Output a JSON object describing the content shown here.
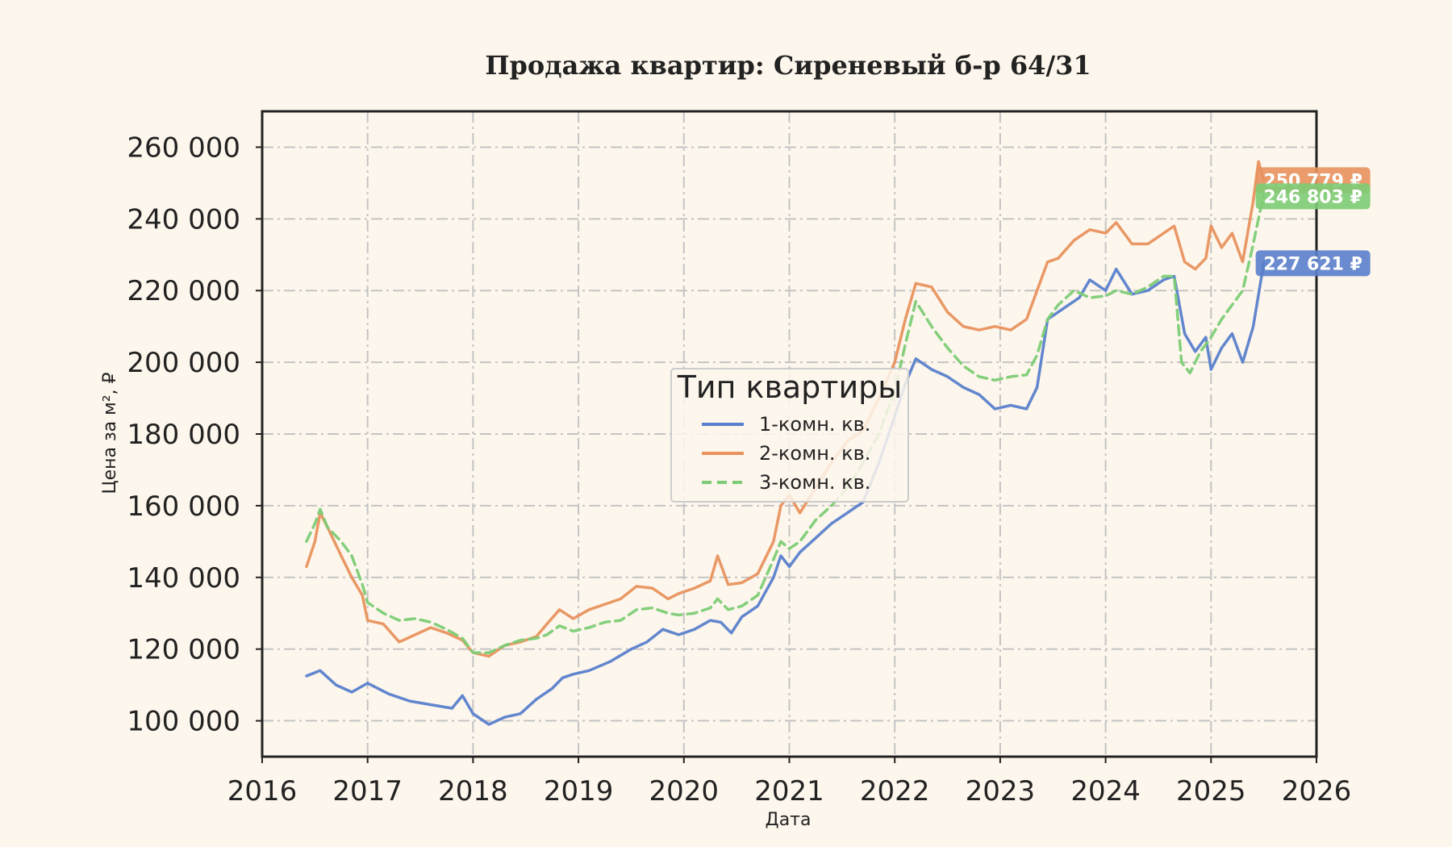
{
  "chart_data": {
    "type": "line",
    "title": "Продажа квартир: Сиреневый б-р 64/31",
    "xlabel": "Дата",
    "ylabel": "Цена за м², ₽",
    "xlim": [
      2016,
      2026
    ],
    "ylim": [
      90000,
      270000
    ],
    "x_ticks": [
      2016,
      2017,
      2018,
      2019,
      2020,
      2021,
      2022,
      2023,
      2024,
      2025,
      2026
    ],
    "x_tick_labels": [
      "2016",
      "2017",
      "2018",
      "2019",
      "2020",
      "2021",
      "2022",
      "2023",
      "2024",
      "2025",
      "2026"
    ],
    "y_ticks": [
      100000,
      120000,
      140000,
      160000,
      180000,
      200000,
      220000,
      240000,
      260000
    ],
    "y_tick_labels": [
      "100 000",
      "120 000",
      "140 000",
      "160 000",
      "180 000",
      "200 000",
      "220 000",
      "240 000",
      "260 000"
    ],
    "grid": true,
    "legend": {
      "title": "Тип квартиры",
      "placement": "center"
    },
    "series": [
      {
        "name": "1-комн. кв.",
        "color": "#5a7fcc",
        "style": "solid",
        "end_label": "227 621 ₽",
        "end_value": 227621,
        "points": [
          [
            2016.42,
            112500
          ],
          [
            2016.55,
            114000
          ],
          [
            2016.7,
            110000
          ],
          [
            2016.85,
            108000
          ],
          [
            2017.0,
            110500
          ],
          [
            2017.2,
            107500
          ],
          [
            2017.4,
            105500
          ],
          [
            2017.6,
            104500
          ],
          [
            2017.8,
            103500
          ],
          [
            2017.9,
            107000
          ],
          [
            2018.0,
            102000
          ],
          [
            2018.15,
            99000
          ],
          [
            2018.3,
            101000
          ],
          [
            2018.45,
            102000
          ],
          [
            2018.6,
            106000
          ],
          [
            2018.75,
            109000
          ],
          [
            2018.85,
            112000
          ],
          [
            2018.95,
            113000
          ],
          [
            2019.1,
            114000
          ],
          [
            2019.3,
            116500
          ],
          [
            2019.5,
            120000
          ],
          [
            2019.65,
            122000
          ],
          [
            2019.8,
            125500
          ],
          [
            2019.95,
            124000
          ],
          [
            2020.1,
            125500
          ],
          [
            2020.25,
            128000
          ],
          [
            2020.35,
            127500
          ],
          [
            2020.45,
            124500
          ],
          [
            2020.55,
            129000
          ],
          [
            2020.7,
            132000
          ],
          [
            2020.85,
            140000
          ],
          [
            2020.92,
            146000
          ],
          [
            2021.0,
            143000
          ],
          [
            2021.1,
            147000
          ],
          [
            2021.25,
            151000
          ],
          [
            2021.4,
            155000
          ],
          [
            2021.55,
            158000
          ],
          [
            2021.7,
            161000
          ],
          [
            2021.85,
            172000
          ],
          [
            2022.0,
            185000
          ],
          [
            2022.1,
            194000
          ],
          [
            2022.2,
            201000
          ],
          [
            2022.35,
            198000
          ],
          [
            2022.5,
            196000
          ],
          [
            2022.65,
            193000
          ],
          [
            2022.8,
            191000
          ],
          [
            2022.95,
            187000
          ],
          [
            2023.1,
            188000
          ],
          [
            2023.25,
            187000
          ],
          [
            2023.35,
            193000
          ],
          [
            2023.45,
            212000
          ],
          [
            2023.6,
            215000
          ],
          [
            2023.75,
            218000
          ],
          [
            2023.85,
            223000
          ],
          [
            2024.0,
            220000
          ],
          [
            2024.1,
            226000
          ],
          [
            2024.25,
            219000
          ],
          [
            2024.4,
            220000
          ],
          [
            2024.55,
            223000
          ],
          [
            2024.65,
            224000
          ],
          [
            2024.75,
            208000
          ],
          [
            2024.85,
            203000
          ],
          [
            2024.95,
            207000
          ],
          [
            2025.0,
            198000
          ],
          [
            2025.1,
            204000
          ],
          [
            2025.2,
            208000
          ],
          [
            2025.3,
            200000
          ],
          [
            2025.4,
            210000
          ],
          [
            2025.5,
            227621
          ]
        ]
      },
      {
        "name": "2-комн. кв.",
        "color": "#e8925e",
        "style": "solid",
        "end_label": "250 779 ₽",
        "end_value": 250779,
        "points": [
          [
            2016.42,
            143000
          ],
          [
            2016.5,
            150000
          ],
          [
            2016.55,
            158000
          ],
          [
            2016.62,
            154000
          ],
          [
            2016.75,
            146000
          ],
          [
            2016.85,
            140000
          ],
          [
            2016.95,
            135000
          ],
          [
            2017.0,
            128000
          ],
          [
            2017.15,
            127000
          ],
          [
            2017.3,
            122000
          ],
          [
            2017.45,
            124000
          ],
          [
            2017.6,
            126000
          ],
          [
            2017.75,
            124500
          ],
          [
            2017.9,
            122500
          ],
          [
            2018.0,
            119000
          ],
          [
            2018.15,
            118000
          ],
          [
            2018.3,
            121000
          ],
          [
            2018.45,
            122000
          ],
          [
            2018.6,
            123500
          ],
          [
            2018.7,
            127000
          ],
          [
            2018.82,
            131000
          ],
          [
            2018.95,
            128500
          ],
          [
            2019.1,
            131000
          ],
          [
            2019.25,
            132500
          ],
          [
            2019.4,
            134000
          ],
          [
            2019.55,
            137500
          ],
          [
            2019.7,
            137000
          ],
          [
            2019.85,
            134000
          ],
          [
            2019.95,
            135500
          ],
          [
            2020.1,
            137000
          ],
          [
            2020.25,
            139000
          ],
          [
            2020.32,
            146000
          ],
          [
            2020.42,
            138000
          ],
          [
            2020.55,
            138500
          ],
          [
            2020.7,
            141000
          ],
          [
            2020.85,
            150000
          ],
          [
            2020.92,
            160000
          ],
          [
            2021.0,
            163000
          ],
          [
            2021.1,
            158000
          ],
          [
            2021.25,
            165000
          ],
          [
            2021.4,
            172000
          ],
          [
            2021.55,
            178000
          ],
          [
            2021.7,
            181000
          ],
          [
            2021.85,
            190000
          ],
          [
            2022.0,
            200000
          ],
          [
            2022.1,
            212000
          ],
          [
            2022.2,
            222000
          ],
          [
            2022.35,
            221000
          ],
          [
            2022.5,
            214000
          ],
          [
            2022.65,
            210000
          ],
          [
            2022.8,
            209000
          ],
          [
            2022.95,
            210000
          ],
          [
            2023.1,
            209000
          ],
          [
            2023.25,
            212000
          ],
          [
            2023.35,
            220000
          ],
          [
            2023.45,
            228000
          ],
          [
            2023.55,
            229000
          ],
          [
            2023.7,
            234000
          ],
          [
            2023.85,
            237000
          ],
          [
            2024.0,
            236000
          ],
          [
            2024.1,
            239000
          ],
          [
            2024.25,
            233000
          ],
          [
            2024.4,
            233000
          ],
          [
            2024.55,
            236000
          ],
          [
            2024.65,
            238000
          ],
          [
            2024.75,
            228000
          ],
          [
            2024.85,
            226000
          ],
          [
            2024.95,
            229000
          ],
          [
            2025.0,
            238000
          ],
          [
            2025.1,
            232000
          ],
          [
            2025.2,
            236000
          ],
          [
            2025.3,
            228000
          ],
          [
            2025.4,
            245000
          ],
          [
            2025.45,
            256000
          ],
          [
            2025.5,
            250779
          ]
        ]
      },
      {
        "name": "3-комн. кв.",
        "color": "#7dcc76",
        "style": "dashed",
        "end_label": "246 803 ₽",
        "end_value": 246803,
        "points": [
          [
            2016.42,
            150000
          ],
          [
            2016.5,
            155000
          ],
          [
            2016.55,
            159000
          ],
          [
            2016.62,
            154000
          ],
          [
            2016.75,
            150000
          ],
          [
            2016.85,
            146000
          ],
          [
            2016.95,
            138000
          ],
          [
            2017.0,
            133000
          ],
          [
            2017.15,
            130000
          ],
          [
            2017.3,
            128000
          ],
          [
            2017.45,
            128500
          ],
          [
            2017.6,
            127500
          ],
          [
            2017.75,
            125500
          ],
          [
            2017.9,
            123000
          ],
          [
            2018.0,
            119000
          ],
          [
            2018.15,
            119000
          ],
          [
            2018.3,
            121000
          ],
          [
            2018.45,
            122500
          ],
          [
            2018.6,
            123000
          ],
          [
            2018.7,
            124000
          ],
          [
            2018.82,
            126500
          ],
          [
            2018.95,
            125000
          ],
          [
            2019.1,
            126000
          ],
          [
            2019.25,
            127500
          ],
          [
            2019.4,
            128000
          ],
          [
            2019.55,
            131000
          ],
          [
            2019.7,
            131500
          ],
          [
            2019.85,
            130000
          ],
          [
            2019.95,
            129500
          ],
          [
            2020.1,
            130000
          ],
          [
            2020.25,
            131500
          ],
          [
            2020.32,
            134000
          ],
          [
            2020.42,
            131000
          ],
          [
            2020.55,
            132000
          ],
          [
            2020.7,
            135000
          ],
          [
            2020.85,
            145000
          ],
          [
            2020.92,
            150000
          ],
          [
            2021.0,
            148000
          ],
          [
            2021.1,
            150000
          ],
          [
            2021.25,
            156000
          ],
          [
            2021.4,
            160000
          ],
          [
            2021.55,
            165000
          ],
          [
            2021.7,
            172000
          ],
          [
            2021.85,
            180000
          ],
          [
            2022.0,
            192000
          ],
          [
            2022.1,
            205000
          ],
          [
            2022.2,
            217000
          ],
          [
            2022.35,
            210000
          ],
          [
            2022.5,
            204000
          ],
          [
            2022.65,
            199000
          ],
          [
            2022.8,
            196000
          ],
          [
            2022.95,
            195000
          ],
          [
            2023.1,
            196000
          ],
          [
            2023.25,
            196500
          ],
          [
            2023.35,
            202000
          ],
          [
            2023.45,
            212000
          ],
          [
            2023.55,
            216000
          ],
          [
            2023.7,
            220000
          ],
          [
            2023.85,
            218000
          ],
          [
            2024.0,
            218500
          ],
          [
            2024.1,
            220000
          ],
          [
            2024.25,
            219000
          ],
          [
            2024.4,
            221000
          ],
          [
            2024.55,
            224000
          ],
          [
            2024.65,
            224000
          ],
          [
            2024.72,
            200000
          ],
          [
            2024.8,
            197000
          ],
          [
            2024.9,
            203000
          ],
          [
            2025.0,
            207000
          ],
          [
            2025.1,
            212000
          ],
          [
            2025.2,
            216000
          ],
          [
            2025.3,
            220000
          ],
          [
            2025.4,
            233000
          ],
          [
            2025.45,
            240000
          ],
          [
            2025.5,
            246803
          ]
        ]
      }
    ]
  }
}
